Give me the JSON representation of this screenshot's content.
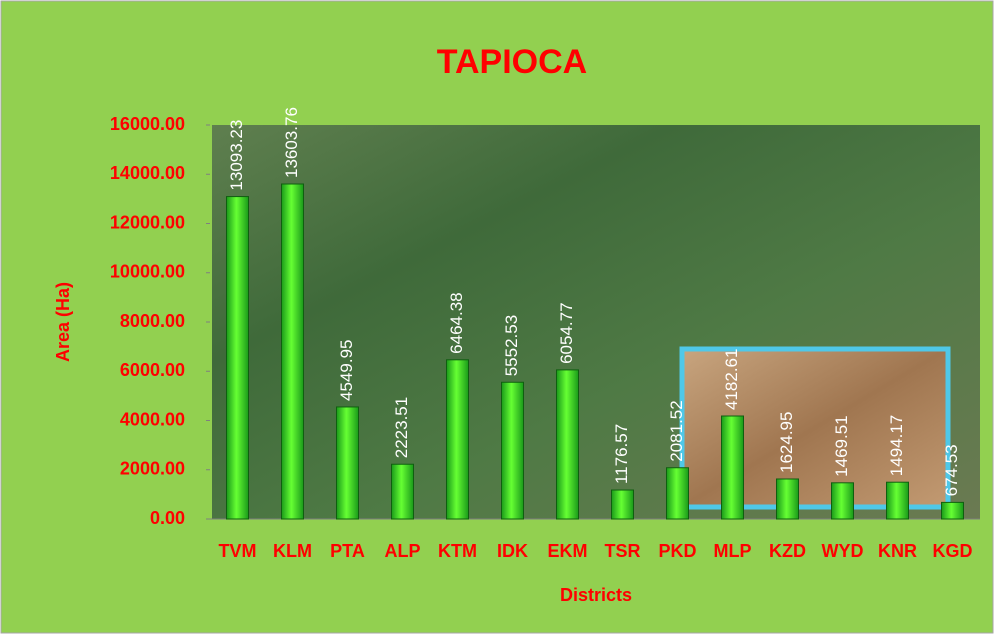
{
  "chart_data": {
    "type": "bar",
    "title": "TAPIOCA",
    "x_label": "Districts",
    "y_label": "Area (Ha)",
    "categories": [
      "TVM",
      "KLM",
      "PTA",
      "ALP",
      "KTM",
      "IDK",
      "EKM",
      "TSR",
      "PKD",
      "MLP",
      "KZD",
      "WYD",
      "KNR",
      "KGD"
    ],
    "values": [
      13093.23,
      13603.76,
      4549.95,
      2223.51,
      6464.38,
      5552.53,
      6054.77,
      1176.57,
      2081.52,
      4182.61,
      1624.95,
      1469.51,
      1494.17,
      674.53
    ],
    "color": "#33cc33",
    "ylim": [
      0,
      16000
    ],
    "yticks": [
      {
        "value": 0,
        "label": "0.00"
      },
      {
        "value": 2000,
        "label": "2000.00"
      },
      {
        "value": 4000,
        "label": "4000.00"
      },
      {
        "value": 6000,
        "label": "6000.00"
      },
      {
        "value": 8000,
        "label": "8000.00"
      },
      {
        "value": 10000,
        "label": "10000.00"
      },
      {
        "value": 12000,
        "label": "12000.00"
      },
      {
        "value": 14000,
        "label": "14000.00"
      },
      {
        "value": 16000,
        "label": "16000.00"
      }
    ]
  }
}
